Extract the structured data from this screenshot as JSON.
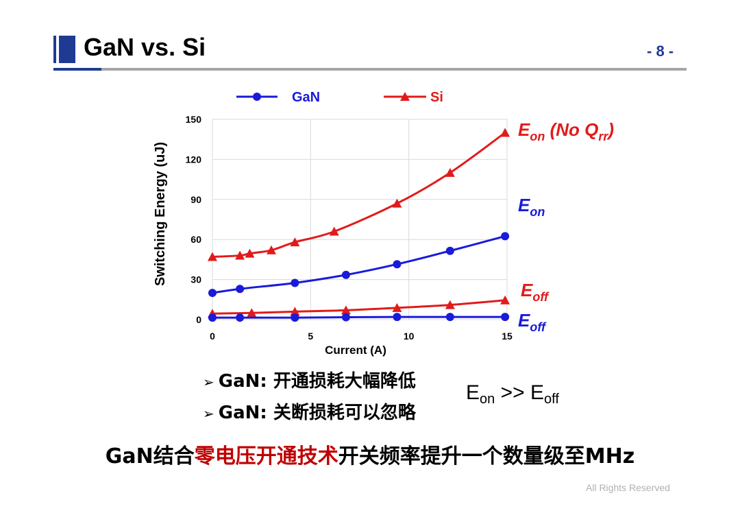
{
  "header": {
    "title": "GaN vs. Si",
    "page_number": "- 8 -"
  },
  "colors": {
    "gan": "#1a1adb",
    "si": "#e11b1b",
    "accent": "#1f3a93",
    "highlight": "#c00000"
  },
  "chart_data": {
    "type": "line",
    "xlabel": "Current (A)",
    "ylabel": "Switching Energy (uJ)",
    "xlim": [
      0,
      15
    ],
    "ylim": [
      0,
      150
    ],
    "xticks": [
      0,
      5,
      10,
      15
    ],
    "yticks": [
      0,
      30,
      60,
      90,
      120,
      150
    ],
    "grid": true,
    "legend_position": "top",
    "legend": [
      {
        "name": "GaN",
        "marker": "circle",
        "color": "#1a1adb"
      },
      {
        "name": "Si",
        "marker": "triangle",
        "color": "#e11b1b"
      }
    ],
    "series": [
      {
        "name": "Si Eon (No Qrr)",
        "legend": "Si",
        "color": "#e11b1b",
        "marker": "triangle",
        "label": {
          "main": "E",
          "sub": "on",
          "suffix": " (No Q",
          "sub2": "rr",
          "close": ")"
        },
        "points": [
          [
            0,
            47
          ],
          [
            1.4,
            48
          ],
          [
            1.9,
            49.5
          ],
          [
            3,
            52
          ],
          [
            4.2,
            58
          ],
          [
            6.2,
            66
          ],
          [
            9.4,
            87
          ],
          [
            12.1,
            110
          ],
          [
            14.9,
            140
          ]
        ]
      },
      {
        "name": "GaN Eon",
        "legend": "GaN",
        "color": "#1a1adb",
        "marker": "circle",
        "label": {
          "main": "E",
          "sub": "on"
        },
        "points": [
          [
            0,
            20
          ],
          [
            1.4,
            23
          ],
          [
            4.2,
            27.5
          ],
          [
            6.8,
            33.5
          ],
          [
            9.4,
            41.5
          ],
          [
            12.1,
            51.5
          ],
          [
            14.9,
            62.5
          ]
        ]
      },
      {
        "name": "Si Eoff",
        "legend": "Si",
        "color": "#e11b1b",
        "marker": "triangle",
        "label": {
          "main": "E",
          "sub": "off"
        },
        "points": [
          [
            0,
            4.5
          ],
          [
            2,
            5
          ],
          [
            4.2,
            6
          ],
          [
            6.8,
            7
          ],
          [
            9.4,
            8.8
          ],
          [
            12.1,
            11
          ],
          [
            14.9,
            14.5
          ]
        ]
      },
      {
        "name": "GaN Eoff",
        "legend": "GaN",
        "color": "#1a1adb",
        "marker": "circle",
        "label": {
          "main": "E",
          "sub": "off"
        },
        "points": [
          [
            0,
            1.5
          ],
          [
            1.4,
            1.5
          ],
          [
            4.2,
            1.5
          ],
          [
            6.8,
            1.8
          ],
          [
            9.4,
            2
          ],
          [
            12.1,
            2
          ],
          [
            14.9,
            2
          ]
        ]
      }
    ]
  },
  "bullets": [
    "GaN: 开通损耗大幅降低",
    "GaN: 关断损耗可以忽略"
  ],
  "equation": {
    "e1": "E",
    "s1": "on",
    "op": " >> ",
    "e2": "E",
    "s2": "off"
  },
  "bottom_line": {
    "prefix": "GaN结合",
    "highlight": "零电压开通技术",
    "suffix": "开关频率提升一个数量级至MHz"
  },
  "footer": {
    "copyright": "All Rights Reserved"
  }
}
